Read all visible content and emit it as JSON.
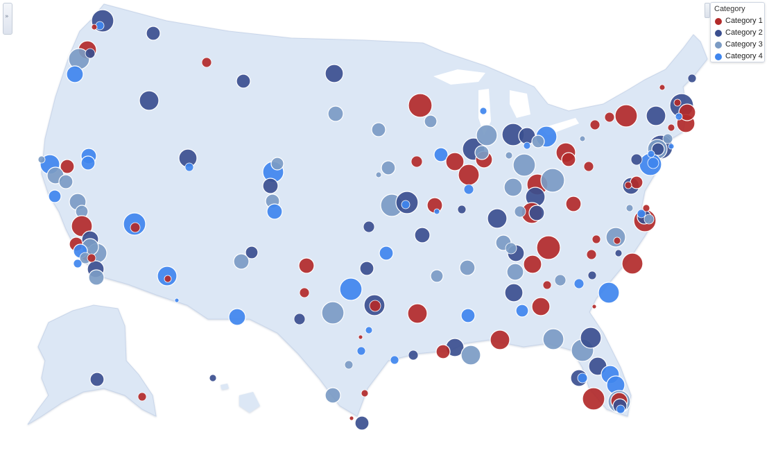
{
  "legend": {
    "title": "Category",
    "items": [
      {
        "label": "Category 1",
        "color": "#b22a2a"
      },
      {
        "label": "Category 2",
        "color": "#3b4f8f"
      },
      {
        "label": "Category 3",
        "color": "#7b9bc4"
      },
      {
        "label": "Category 4",
        "color": "#3f86ee"
      }
    ]
  },
  "map": {
    "land_color": "#dce7f5",
    "background": "#ffffff"
  },
  "controls": {
    "collapse_icon": "double-chevron-right-icon"
  }
}
